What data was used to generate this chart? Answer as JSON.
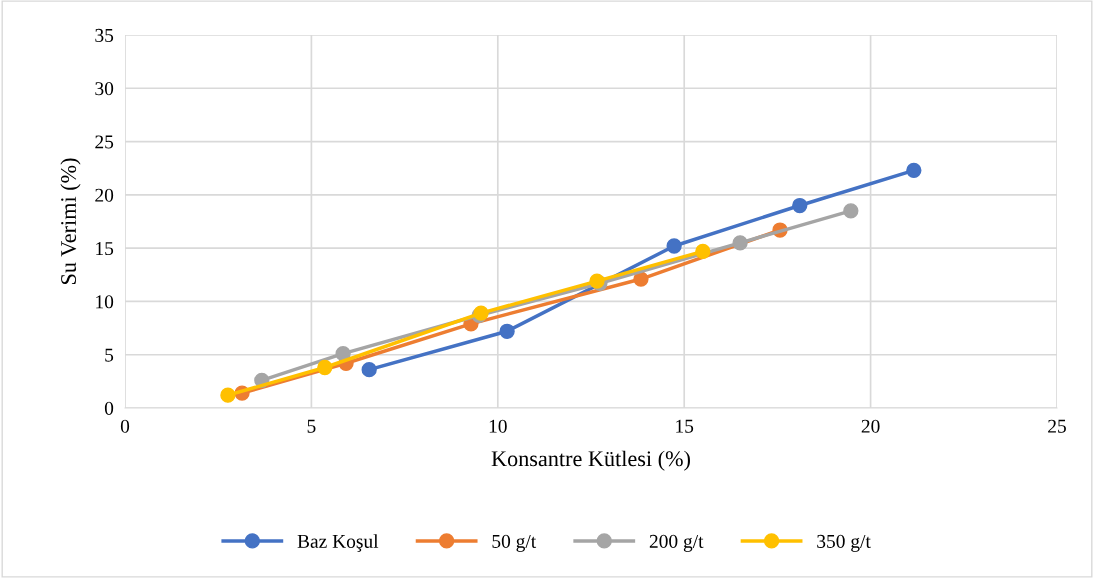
{
  "chart_data": {
    "type": "line",
    "xlabel": "Konsantre Kütlesi (%)",
    "ylabel": "Su Verimi (%)",
    "xlim": [
      0,
      25
    ],
    "xticks": [
      0,
      5,
      10,
      15,
      20,
      25
    ],
    "ylim": [
      0,
      35
    ],
    "yticks": [
      0,
      5,
      10,
      15,
      20,
      25,
      30,
      35
    ],
    "grid": true,
    "legend": "bottom",
    "marker": "circle",
    "line_style": "solid",
    "series": [
      {
        "name": "Baz Koşul",
        "color": "#4472c4",
        "x": [
          6.55,
          10.25,
          14.73,
          18.1,
          21.16
        ],
        "values": [
          3.6,
          7.2,
          15.2,
          19.0,
          22.3
        ]
      },
      {
        "name": "50 g/t",
        "color": "#ed7d31",
        "x": [
          3.14,
          5.93,
          9.28,
          13.84,
          17.57
        ],
        "values": [
          1.4,
          4.2,
          7.9,
          12.1,
          16.7
        ]
      },
      {
        "name": "200 g/t",
        "color": "#a5a5a5",
        "x": [
          3.67,
          5.85,
          9.5,
          12.74,
          16.5,
          19.47
        ],
        "values": [
          2.6,
          5.1,
          8.7,
          11.7,
          15.5,
          18.5
        ]
      },
      {
        "name": "350 g/t",
        "color": "#ffc000",
        "x": [
          2.76,
          5.36,
          9.55,
          12.66,
          15.5
        ],
        "values": [
          1.2,
          3.8,
          8.9,
          11.9,
          14.7
        ]
      }
    ]
  }
}
